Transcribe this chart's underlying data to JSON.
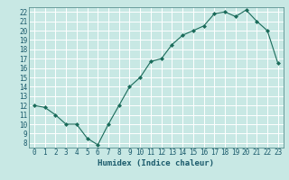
{
  "x": [
    0,
    1,
    2,
    3,
    4,
    5,
    6,
    7,
    8,
    9,
    10,
    11,
    12,
    13,
    14,
    15,
    16,
    17,
    18,
    19,
    20,
    21,
    22,
    23
  ],
  "y": [
    12.0,
    11.8,
    11.0,
    10.0,
    10.0,
    8.5,
    7.8,
    10.0,
    12.0,
    14.0,
    15.0,
    16.7,
    17.0,
    18.5,
    19.5,
    20.0,
    20.5,
    21.8,
    22.0,
    21.5,
    22.2,
    21.0,
    20.0,
    16.5
  ],
  "xlabel": "Humidex (Indice chaleur)",
  "xlim": [
    -0.5,
    23.5
  ],
  "ylim": [
    7.5,
    22.5
  ],
  "yticks": [
    8,
    9,
    10,
    11,
    12,
    13,
    14,
    15,
    16,
    17,
    18,
    19,
    20,
    21,
    22
  ],
  "xticks": [
    0,
    1,
    2,
    3,
    4,
    5,
    6,
    7,
    8,
    9,
    10,
    11,
    12,
    13,
    14,
    15,
    16,
    17,
    18,
    19,
    20,
    21,
    22,
    23
  ],
  "line_color": "#1a6b5a",
  "marker_color": "#1a6b5a",
  "bg_color": "#c8e8e4",
  "grid_color": "#ffffff",
  "label_color": "#1a5a6b",
  "tick_fontsize": 5.5,
  "xlabel_fontsize": 6.5
}
